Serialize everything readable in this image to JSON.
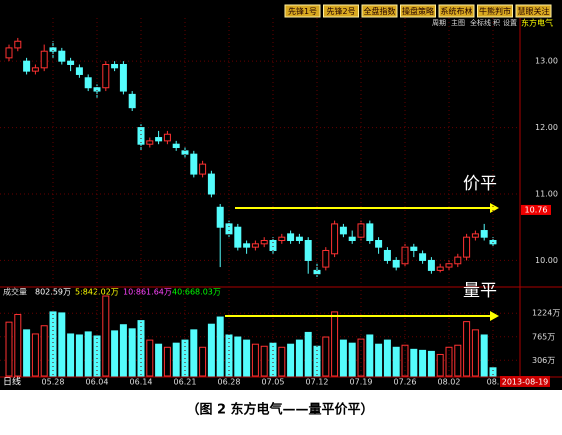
{
  "toolbar": {
    "buttons": [
      "先锋1号",
      "先锋2号",
      "全盘指数",
      "操盘策略",
      "系统布林",
      "牛熊判市",
      "慧眼关注"
    ],
    "menu": [
      "周期",
      "主图",
      "全标线",
      "积",
      "设置"
    ],
    "stock_name": "东方电气"
  },
  "chart_data": [
    {
      "type": "candlestick",
      "up_color": "#ff3232",
      "down_color": "#54fcfc",
      "open": [
        13.05,
        13.2,
        13.0,
        12.85,
        12.9,
        13.2,
        13.15,
        13.0,
        12.9,
        12.75,
        12.6,
        12.6,
        12.95,
        12.95,
        12.5,
        12.0,
        11.75,
        11.85,
        11.8,
        11.75,
        11.65,
        11.6,
        11.3,
        11.3,
        10.8,
        10.55,
        10.5,
        10.25,
        10.2,
        10.25,
        10.3,
        10.3,
        10.4,
        10.35,
        10.3,
        9.85,
        9.9,
        10.1,
        10.5,
        10.35,
        10.35,
        10.55,
        10.3,
        10.15,
        10.0,
        9.95,
        10.2,
        10.1,
        10.0,
        9.85,
        9.9,
        9.95,
        10.05,
        10.35,
        10.45,
        10.3
      ],
      "high": [
        13.25,
        13.35,
        13.05,
        12.95,
        13.25,
        13.3,
        13.2,
        13.05,
        12.95,
        12.8,
        12.65,
        13.0,
        13.0,
        13.0,
        12.55,
        12.05,
        11.85,
        11.95,
        11.95,
        11.8,
        11.7,
        11.65,
        11.5,
        11.35,
        10.85,
        10.6,
        10.55,
        10.3,
        10.3,
        10.35,
        10.35,
        10.4,
        10.45,
        10.4,
        10.35,
        9.95,
        10.2,
        10.6,
        10.55,
        10.45,
        10.6,
        10.6,
        10.35,
        10.2,
        10.05,
        10.25,
        10.25,
        10.15,
        10.05,
        9.95,
        10.0,
        10.1,
        10.4,
        10.45,
        10.55,
        10.35
      ],
      "low": [
        13.0,
        13.15,
        12.8,
        12.8,
        12.85,
        13.05,
        12.95,
        12.85,
        12.75,
        12.55,
        12.45,
        12.55,
        12.85,
        12.5,
        12.25,
        11.65,
        11.7,
        11.75,
        11.75,
        11.65,
        11.55,
        11.25,
        11.25,
        10.95,
        9.9,
        10.35,
        10.15,
        10.1,
        10.15,
        10.2,
        10.1,
        10.25,
        10.25,
        10.25,
        9.8,
        9.75,
        9.85,
        10.05,
        10.35,
        10.25,
        10.3,
        10.25,
        10.1,
        9.95,
        9.85,
        9.9,
        10.05,
        9.95,
        9.8,
        9.82,
        9.85,
        9.9,
        10.0,
        10.3,
        10.3,
        10.2
      ],
      "close": [
        13.2,
        13.3,
        12.85,
        12.9,
        13.15,
        13.15,
        13.0,
        12.95,
        12.8,
        12.6,
        12.55,
        12.95,
        12.9,
        12.55,
        12.3,
        11.75,
        11.8,
        11.8,
        11.9,
        11.7,
        11.6,
        11.3,
        11.45,
        11.0,
        10.5,
        10.4,
        10.2,
        10.2,
        10.25,
        10.3,
        10.15,
        10.35,
        10.3,
        10.3,
        10.0,
        9.8,
        10.15,
        10.55,
        10.4,
        10.3,
        10.55,
        10.3,
        10.2,
        10.0,
        9.9,
        10.2,
        10.15,
        10.0,
        9.85,
        9.9,
        9.95,
        10.05,
        10.35,
        10.4,
        10.35,
        10.25
      ],
      "ylim": [
        9.6,
        13.65
      ],
      "yticks": [
        {
          "value": 10,
          "label": "10.00"
        },
        {
          "value": 11,
          "label": "11.00"
        },
        {
          "value": 12,
          "label": "12.00"
        },
        {
          "value": 13,
          "label": "13.00"
        }
      ],
      "last_price": 10.76,
      "annotation": "价平"
    },
    {
      "type": "bar",
      "title": "成交量",
      "stats": [
        "802.59万",
        "5:842.02万",
        "10:861.64万",
        "40:668.03万"
      ],
      "stat_colors": [
        "#ffffff",
        "#ffff00",
        "#ff44ff",
        "#00ff00"
      ],
      "values": [
        1050,
        1200,
        900,
        820,
        980,
        1250,
        1230,
        820,
        800,
        860,
        780,
        1560,
        880,
        1000,
        920,
        1080,
        700,
        620,
        560,
        640,
        700,
        900,
        560,
        1010,
        1150,
        800,
        760,
        700,
        620,
        580,
        640,
        560,
        620,
        700,
        850,
        580,
        760,
        1250,
        700,
        640,
        720,
        800,
        620,
        700,
        560,
        600,
        520,
        500,
        480,
        420,
        560,
        600,
        1060,
        900,
        800,
        160
      ],
      "categories": [
        null,
        null,
        null,
        null,
        null,
        "05.28",
        null,
        null,
        null,
        null,
        "06.04",
        null,
        null,
        null,
        null,
        "06.14",
        null,
        null,
        null,
        null,
        "06.21",
        null,
        null,
        null,
        null,
        "06.28",
        null,
        null,
        null,
        null,
        "07.05",
        null,
        null,
        null,
        null,
        "07.12",
        null,
        null,
        null,
        null,
        "07.19",
        null,
        null,
        null,
        null,
        "07.26",
        null,
        null,
        null,
        null,
        "08.02",
        null,
        null,
        null,
        null,
        "08."
      ],
      "ylim": [
        0,
        1560
      ],
      "yticks": [
        {
          "value": 306,
          "label": "306万"
        },
        {
          "value": 765,
          "label": "765万"
        },
        {
          "value": 1224,
          "label": "1224万"
        }
      ],
      "annotation": "量平"
    }
  ],
  "period": "日线",
  "date": "2013-08-19",
  "caption": "（图 2 东方电气——量平价平）"
}
